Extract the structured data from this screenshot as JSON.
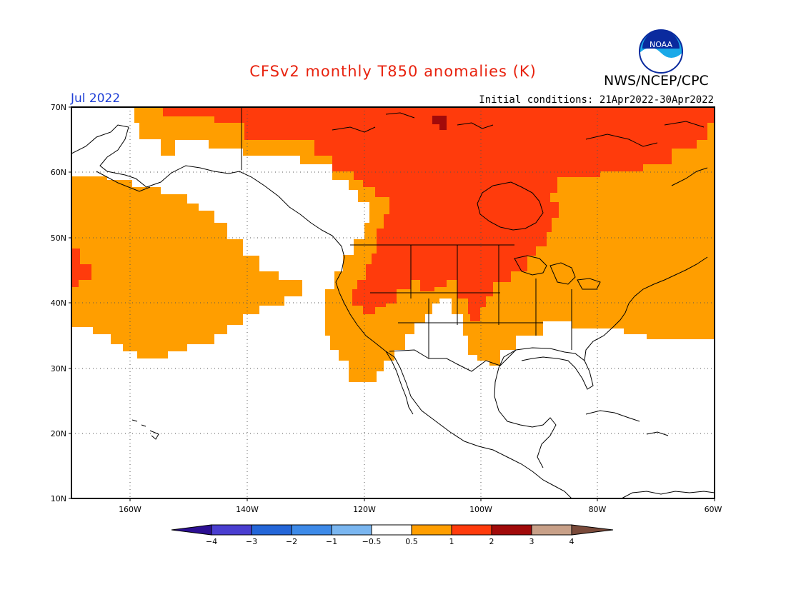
{
  "title": "CFSv2 monthly T850 anomalies (K)",
  "organization": "NWS/NCEP/CPC",
  "logo_text": "NOAA",
  "valid_month": "Jul 2022",
  "initial_conditions": "Initial conditions: 21Apr2022-30Apr2022",
  "map": {
    "lon_range": [
      -172,
      -60
    ],
    "lat_range": [
      10,
      70
    ],
    "lat_labels": [
      "70N",
      "60N",
      "50N",
      "40N",
      "30N",
      "20N",
      "10N"
    ],
    "lon_labels": [
      "160W",
      "140W",
      "120W",
      "100W",
      "80W",
      "60W"
    ],
    "gridlines": "dotted"
  },
  "colorbar": {
    "labels": [
      "-4",
      "-3",
      "-2",
      "-1",
      "-0.5",
      "0.5",
      "1",
      "2",
      "3",
      "4"
    ],
    "colors": [
      "#2c0f93",
      "#4a3ed0",
      "#2466d8",
      "#3d8ae8",
      "#7ab6f0",
      "#ffffff",
      "#ff9e00",
      "#ff3b0c",
      "#a10a0a",
      "#c8a088",
      "#7a4a3a"
    ]
  },
  "anomaly_colors": {
    "0.5-1": "#ff9e00",
    "1-2": "#ff3b0c",
    "2-3": "#a10a0a"
  }
}
